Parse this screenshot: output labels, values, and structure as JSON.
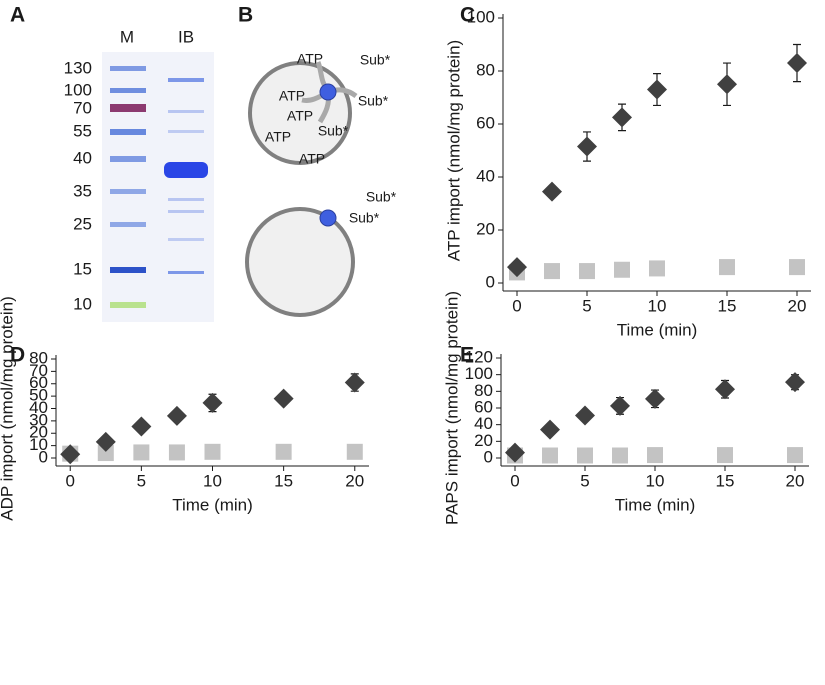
{
  "panel_labels": [
    "A",
    "B",
    "C",
    "D",
    "E"
  ],
  "gel": {
    "lanes": [
      "M",
      "IB"
    ],
    "markers": [
      "130",
      "100",
      "70",
      "55",
      "40",
      "35",
      "25",
      "15",
      "10"
    ]
  },
  "diagram": {
    "top_labels": [
      "ATP",
      "Sub*",
      "ATP",
      "Sub*",
      "ATP",
      "Sub*",
      "ATP",
      "ATP"
    ],
    "bottom_labels": [
      "Sub*",
      "Sub*"
    ]
  },
  "chart_data": [
    {
      "type": "scatter",
      "x_label": "Time (min)",
      "y_label": "ATP import (nmol/mg protein)",
      "x": [
        0,
        2.5,
        5,
        7.5,
        10,
        15,
        20
      ],
      "xlim": [
        -1,
        21
      ],
      "xticks": [
        0,
        5,
        10,
        15,
        20
      ],
      "ylim": [
        0,
        100
      ],
      "yticks": [
        0,
        20,
        40,
        60,
        80,
        100
      ],
      "series": [
        {
          "marker": "diamond",
          "color": "#404040",
          "values": [
            6,
            34.5,
            51.5,
            62.5,
            73,
            75,
            83
          ],
          "errors": [
            1.5,
            2,
            5.5,
            5,
            6,
            8,
            7
          ]
        },
        {
          "marker": "square",
          "color": "#c3c3c3",
          "values": [
            4,
            4.5,
            4.5,
            5,
            5.5,
            6,
            6
          ]
        }
      ]
    },
    {
      "type": "scatter",
      "x_label": "Time (min)",
      "y_label": "ADP import (nmol/mg protein)",
      "x": [
        0,
        2.5,
        5,
        7.5,
        10,
        15,
        20
      ],
      "xlim": [
        -1,
        21
      ],
      "xticks": [
        0,
        5,
        10,
        15,
        20
      ],
      "ylim": [
        0,
        80
      ],
      "yticks": [
        0,
        10,
        20,
        30,
        40,
        50,
        60,
        70,
        80
      ],
      "series": [
        {
          "marker": "diamond",
          "color": "#404040",
          "values": [
            3,
            13,
            25.5,
            34,
            44.5,
            48,
            61
          ],
          "errors": [
            1,
            0.5,
            2,
            2.5,
            7,
            3,
            7
          ]
        },
        {
          "marker": "square",
          "color": "#c3c3c3",
          "values": [
            3.5,
            4,
            4.5,
            4.5,
            5,
            5,
            5
          ]
        }
      ]
    },
    {
      "type": "scatter",
      "x_label": "Time (min)",
      "y_label": "PAPS import (nmol/mg protein)",
      "x": [
        0,
        2.5,
        5,
        7.5,
        10,
        15,
        20
      ],
      "xlim": [
        -1,
        21
      ],
      "xticks": [
        0,
        5,
        10,
        15,
        20
      ],
      "ylim": [
        0,
        120
      ],
      "yticks": [
        0,
        20,
        40,
        60,
        80,
        100,
        120
      ],
      "series": [
        {
          "marker": "diamond",
          "color": "#404040",
          "values": [
            6.5,
            34,
            51,
            62.5,
            71,
            82.5,
            91
          ],
          "errors": [
            1,
            3,
            3.5,
            10,
            10.5,
            10.5,
            9
          ]
        },
        {
          "marker": "square",
          "color": "#c3c3c3",
          "values": [
            3,
            3,
            3,
            3,
            3.5,
            3.5,
            3.5
          ]
        }
      ]
    }
  ]
}
